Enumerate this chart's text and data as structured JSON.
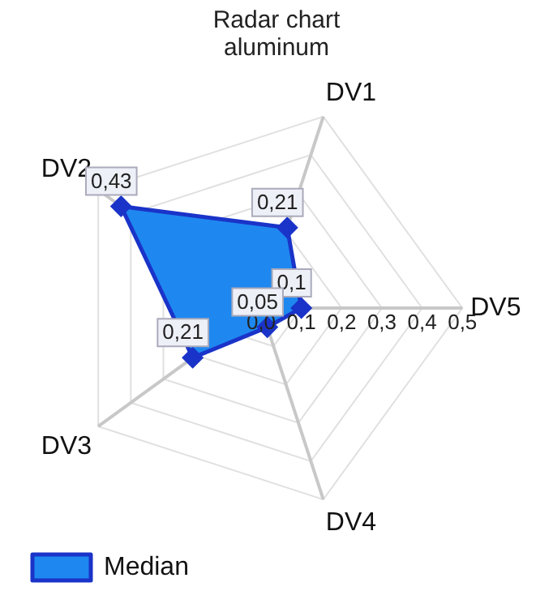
{
  "chart_data": {
    "type": "radar",
    "title": "Radar chart aluminum",
    "categories": [
      "DV1",
      "DV5",
      "DV4",
      "DV3",
      "DV2"
    ],
    "series": [
      {
        "name": "Median",
        "color": "#1e88f0",
        "values": [
          0.21,
          0.1,
          0.05,
          0.21,
          0.43
        ],
        "value_labels": [
          "0,21",
          "0,1",
          "0,05",
          "0,21",
          "0,43"
        ]
      }
    ],
    "ylim": [
      0,
      0.5
    ],
    "yticks": [
      {
        "value": 0,
        "label": "0,0"
      },
      {
        "value": 0.1,
        "label": "0,1"
      },
      {
        "value": 0.2,
        "label": "0,2"
      },
      {
        "value": 0.3,
        "label": "0,3"
      },
      {
        "value": 0.4,
        "label": "0,4"
      },
      {
        "value": 0.5,
        "label": "0,5"
      }
    ],
    "grid": true,
    "legend": "bottom left",
    "marker": "diamond",
    "line_style": "solid"
  }
}
